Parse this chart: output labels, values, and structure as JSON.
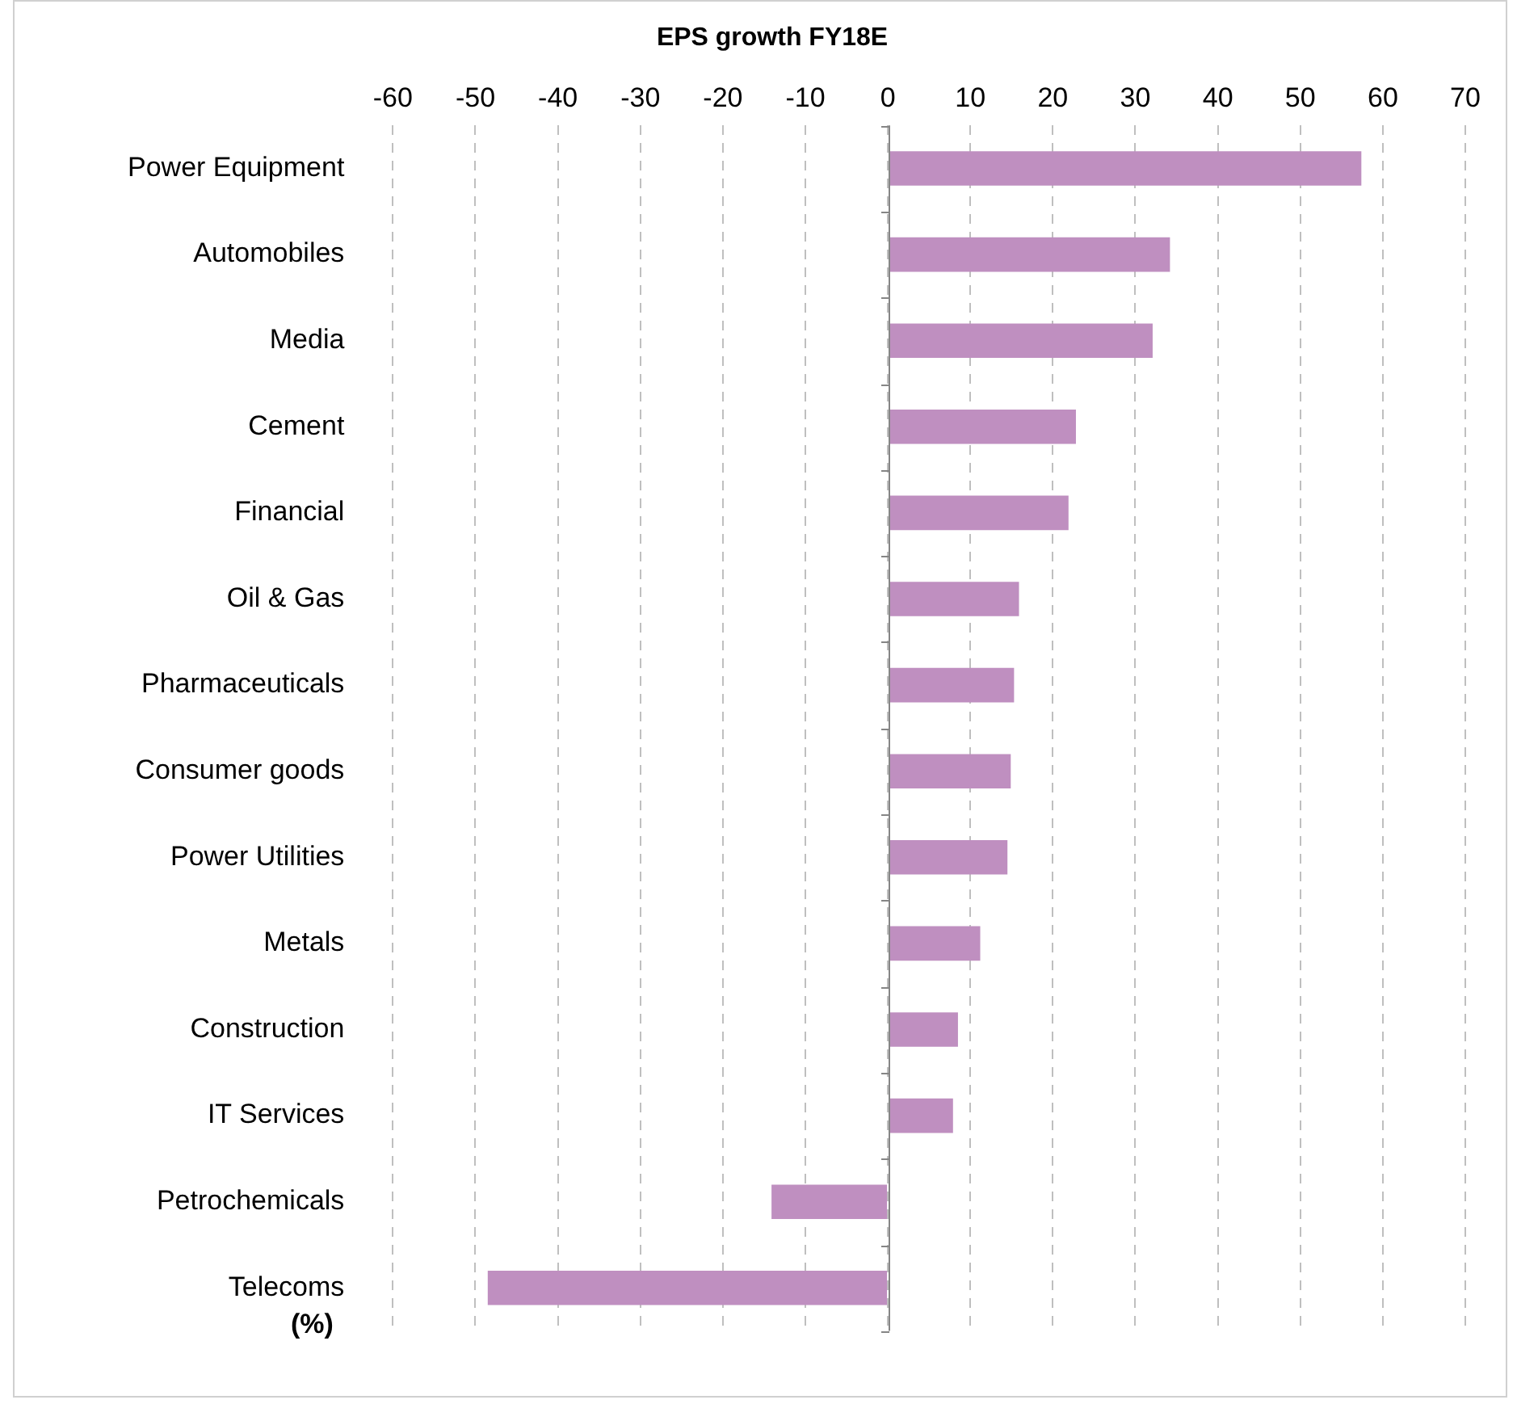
{
  "chart_data": {
    "type": "bar",
    "orientation": "horizontal",
    "title": "EPS growth FY18E",
    "categories": [
      "Power Equipment",
      "Automobiles",
      "Media",
      "Cement",
      "Financial",
      "Oil & Gas",
      "Pharmaceuticals",
      "Consumer goods",
      "Power Utilities",
      "Metals",
      "Construction",
      "IT Services",
      "Petrochemicals",
      "Telecoms"
    ],
    "values": [
      57.4,
      34.2,
      32.1,
      22.8,
      21.9,
      15.9,
      15.3,
      14.9,
      14.5,
      11.2,
      8.5,
      7.9,
      -14.1,
      -48.5
    ],
    "color": "#bf8fc0",
    "xlim": [
      -60,
      70
    ],
    "xticks": [
      -60,
      -50,
      -40,
      -30,
      -20,
      -10,
      0,
      10,
      20,
      30,
      40,
      50,
      60,
      70
    ],
    "grid": "x",
    "legend": false,
    "annotations": [
      "(%)"
    ]
  }
}
